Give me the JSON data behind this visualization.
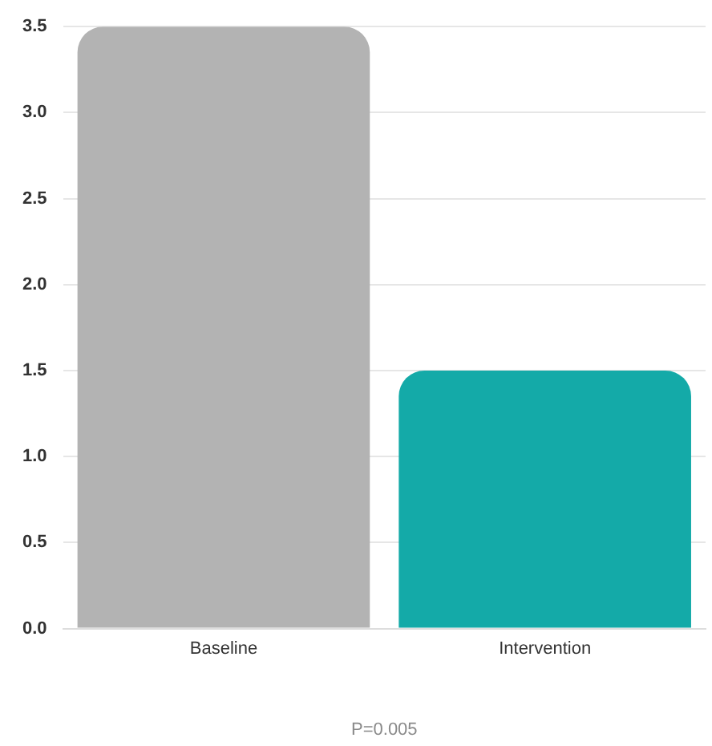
{
  "chart_data": {
    "type": "bar",
    "categories": [
      "Baseline",
      "Intervention"
    ],
    "values": [
      3.5,
      1.5
    ],
    "colors": [
      "#b3b3b3",
      "#14aaa8"
    ],
    "ylim": [
      0,
      3.5
    ],
    "yticks": [
      {
        "value": 0,
        "label": "0.0"
      },
      {
        "value": 0.5,
        "label": "0.5"
      },
      {
        "value": 1,
        "label": "1.0"
      },
      {
        "value": 1.5,
        "label": "1.5"
      },
      {
        "value": 2,
        "label": "2.0"
      },
      {
        "value": 2.5,
        "label": "2.5"
      },
      {
        "value": 3,
        "label": "3.0"
      },
      {
        "value": 3.5,
        "label": "3.5"
      }
    ],
    "grid": "y",
    "legend": false,
    "annotations": [
      "P=0.005"
    ]
  }
}
